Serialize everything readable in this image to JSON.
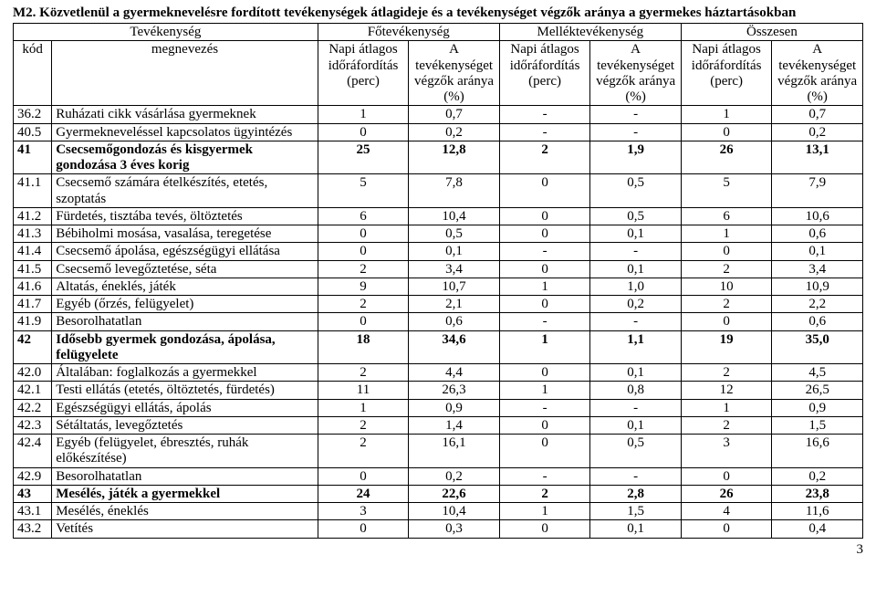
{
  "title": "M2. Közvetlenül a gyermeknevelésre fordított tevékenységek átlagideje és a tevékenységet végzők aránya a gyermekes háztartásokban",
  "header": {
    "tevekenyseg": "Tevékenység",
    "fotevekenyseg": "Főtevékenység",
    "mellektevekenyseg": "Melléktevékenység",
    "osszesen": "Összesen",
    "kod": "kód",
    "megnevezes": "megnevezés",
    "col_time": "Napi átlagos időráfordítás (perc)",
    "col_pct": "A tevékenységet végzők aránya (%)"
  },
  "page_number": "3",
  "rows": [
    {
      "kod": "36.2",
      "meg": "Ruházati cikk vásárlása gyermeknek",
      "v": [
        "1",
        "0,7",
        "-",
        "-",
        "1",
        "0,7"
      ],
      "bold": false
    },
    {
      "kod": "40.5",
      "meg": "Gyermekneveléssel kapcsolatos ügyintézés",
      "v": [
        "0",
        "0,2",
        "-",
        "-",
        "0",
        "0,2"
      ],
      "bold": false
    },
    {
      "kod": "41",
      "meg": "Csecsemőgondozás és kisgyermek gondozása 3 éves korig",
      "v": [
        "25",
        "12,8",
        "2",
        "1,9",
        "26",
        "13,1"
      ],
      "bold": true
    },
    {
      "kod": "41.1",
      "meg": "Csecsemő számára ételkészítés, etetés, szoptatás",
      "v": [
        "5",
        "7,8",
        "0",
        "0,5",
        "5",
        "7,9"
      ],
      "bold": false
    },
    {
      "kod": "41.2",
      "meg": "Fürdetés, tisztába tevés, öltöztetés",
      "v": [
        "6",
        "10,4",
        "0",
        "0,5",
        "6",
        "10,6"
      ],
      "bold": false
    },
    {
      "kod": "41.3",
      "meg": "Bébiholmi mosása, vasalása, teregetése",
      "v": [
        "0",
        "0,5",
        "0",
        "0,1",
        "1",
        "0,6"
      ],
      "bold": false
    },
    {
      "kod": "41.4",
      "meg": "Csecsemő ápolása, egészségügyi ellátása",
      "v": [
        "0",
        "0,1",
        "-",
        "-",
        "0",
        "0,1"
      ],
      "bold": false
    },
    {
      "kod": "41.5",
      "meg": "Csecsemő levegőztetése, séta",
      "v": [
        "2",
        "3,4",
        "0",
        "0,1",
        "2",
        "3,4"
      ],
      "bold": false
    },
    {
      "kod": "41.6",
      "meg": "Altatás, éneklés, játék",
      "v": [
        "9",
        "10,7",
        "1",
        "1,0",
        "10",
        "10,9"
      ],
      "bold": false
    },
    {
      "kod": "41.7",
      "meg": "Egyéb (őrzés, felügyelet)",
      "v": [
        "2",
        "2,1",
        "0",
        "0,2",
        "2",
        "2,2"
      ],
      "bold": false
    },
    {
      "kod": "41.9",
      "meg": "Besorolhatatlan",
      "v": [
        "0",
        "0,6",
        "-",
        "-",
        "0",
        "0,6"
      ],
      "bold": false
    },
    {
      "kod": "42",
      "meg": "Idősebb gyermek gondozása, ápolása, felügyelete",
      "v": [
        "18",
        "34,6",
        "1",
        "1,1",
        "19",
        "35,0"
      ],
      "bold": true
    },
    {
      "kod": "42.0",
      "meg": "Általában: foglalkozás a gyermekkel",
      "v": [
        "2",
        "4,4",
        "0",
        "0,1",
        "2",
        "4,5"
      ],
      "bold": false
    },
    {
      "kod": "42.1",
      "meg": "Testi ellátás (etetés, öltöztetés, fürdetés)",
      "v": [
        "11",
        "26,3",
        "1",
        "0,8",
        "12",
        "26,5"
      ],
      "bold": false
    },
    {
      "kod": "42.2",
      "meg": "Egészségügyi ellátás, ápolás",
      "v": [
        "1",
        "0,9",
        "-",
        "-",
        "1",
        "0,9"
      ],
      "bold": false
    },
    {
      "kod": "42.3",
      "meg": "Sétáltatás, levegőztetés",
      "v": [
        "2",
        "1,4",
        "0",
        "0,1",
        "2",
        "1,5"
      ],
      "bold": false
    },
    {
      "kod": "42.4",
      "meg": "Egyéb (felügyelet, ébresztés, ruhák előkészítése)",
      "v": [
        "2",
        "16,1",
        "0",
        "0,5",
        "3",
        "16,6"
      ],
      "bold": false
    },
    {
      "kod": "42.9",
      "meg": "Besorolhatatlan",
      "v": [
        "0",
        "0,2",
        "-",
        "-",
        "0",
        "0,2"
      ],
      "bold": false
    },
    {
      "kod": "43",
      "meg": "Mesélés, játék a gyermekkel",
      "v": [
        "24",
        "22,6",
        "2",
        "2,8",
        "26",
        "23,8"
      ],
      "bold": true
    },
    {
      "kod": "43.1",
      "meg": "Mesélés, éneklés",
      "v": [
        "3",
        "10,4",
        "1",
        "1,5",
        "4",
        "11,6"
      ],
      "bold": false
    },
    {
      "kod": "43.2",
      "meg": "Vetítés",
      "v": [
        "0",
        "0,3",
        "0",
        "0,1",
        "0",
        "0,4"
      ],
      "bold": false
    }
  ]
}
